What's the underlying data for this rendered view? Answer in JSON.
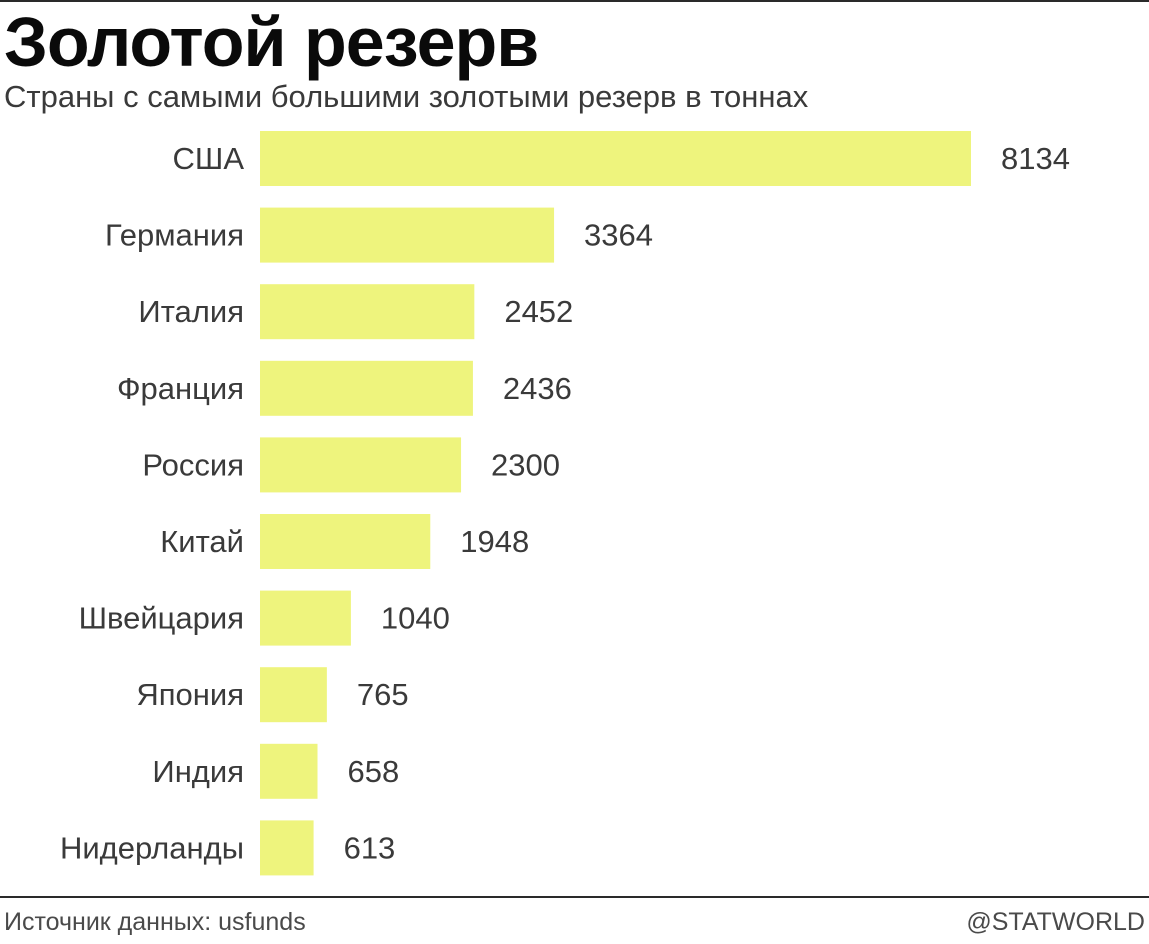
{
  "header": {
    "title": "Золотой резерв",
    "subtitle": "Страны с самыми большими золотыми резерв в тоннах"
  },
  "footer": {
    "source": "Источник данных: usfunds",
    "brand": "@STATWORLD"
  },
  "colors": {
    "bar": "#eef47d",
    "label": "#3a3a3a",
    "value": "#3a3a3a"
  },
  "chart_data": {
    "type": "bar",
    "orientation": "horizontal",
    "title": "Золотой резерв",
    "subtitle": "Страны с самыми большими золотыми резерв в тоннах",
    "xlabel": "",
    "ylabel": "",
    "unit": "тонн",
    "categories": [
      "США",
      "Германия",
      "Италия",
      "Франция",
      "Россия",
      "Китай",
      "Швейцария",
      "Япония",
      "Индия",
      "Нидерланды"
    ],
    "values": [
      8134,
      3364,
      2452,
      2436,
      2300,
      1948,
      1040,
      765,
      658,
      613
    ],
    "value_labels": [
      "8134",
      "3364",
      "2452",
      "2436",
      "2300",
      "1948",
      "1040",
      "765",
      "658",
      "613"
    ],
    "xlim": [
      0,
      8134
    ],
    "grid": false,
    "legend": "none"
  }
}
